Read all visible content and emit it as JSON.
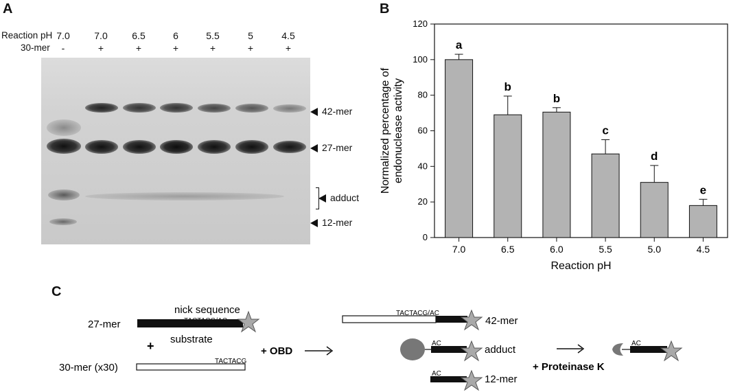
{
  "panel_a": {
    "label": "A",
    "row1_title": "Reaction pH",
    "row2_title": "30-mer",
    "lanes": [
      {
        "ph": "7.0",
        "mer": "-"
      },
      {
        "ph": "7.0",
        "mer": "+"
      },
      {
        "ph": "6.5",
        "mer": "+"
      },
      {
        "ph": "6",
        "mer": "+"
      },
      {
        "ph": "5.5",
        "mer": "+"
      },
      {
        "ph": "5",
        "mer": "+"
      },
      {
        "ph": "4.5",
        "mer": "+"
      }
    ],
    "markers": {
      "m42": "42-mer",
      "m27": "27-mer",
      "adduct": "adduct",
      "m12": "12-mer"
    }
  },
  "panel_b": {
    "label": "B"
  },
  "chart_data": {
    "type": "bar",
    "categories": [
      "7.0",
      "6.5",
      "6.0",
      "5.5",
      "5.0",
      "4.5"
    ],
    "values": [
      100,
      69,
      70.5,
      47,
      31,
      18
    ],
    "errors": [
      3,
      10.5,
      2.5,
      8,
      9.5,
      3.5
    ],
    "significance": [
      "a",
      "b",
      "b",
      "c",
      "d",
      "e"
    ],
    "xlabel": "Reaction pH",
    "ylabel_line1": "Normalized percentage of",
    "ylabel_line2": "endonuclease activity",
    "ylim": [
      0,
      120
    ],
    "yticks": [
      0,
      20,
      40,
      60,
      80,
      100,
      120
    ],
    "grid": false,
    "bar_color": "#b3b3b3"
  },
  "panel_c": {
    "label": "C",
    "mer27": "27-mer",
    "nick_sequence": "nick sequence",
    "seq_27": "TACTACG/AC",
    "substrate": "substrate",
    "plus": "+",
    "mer30": "30-mer (x30)",
    "seq_30": "TACTACG",
    "obd": "+ OBD",
    "seq_42": "TACTACG/AC",
    "mer42": "42-mer",
    "ac_adduct": "AC",
    "adduct": "adduct",
    "ac_12": "AC",
    "mer12": "12-mer",
    "proteinase": "+ Proteinase K",
    "ac_final": "AC"
  }
}
